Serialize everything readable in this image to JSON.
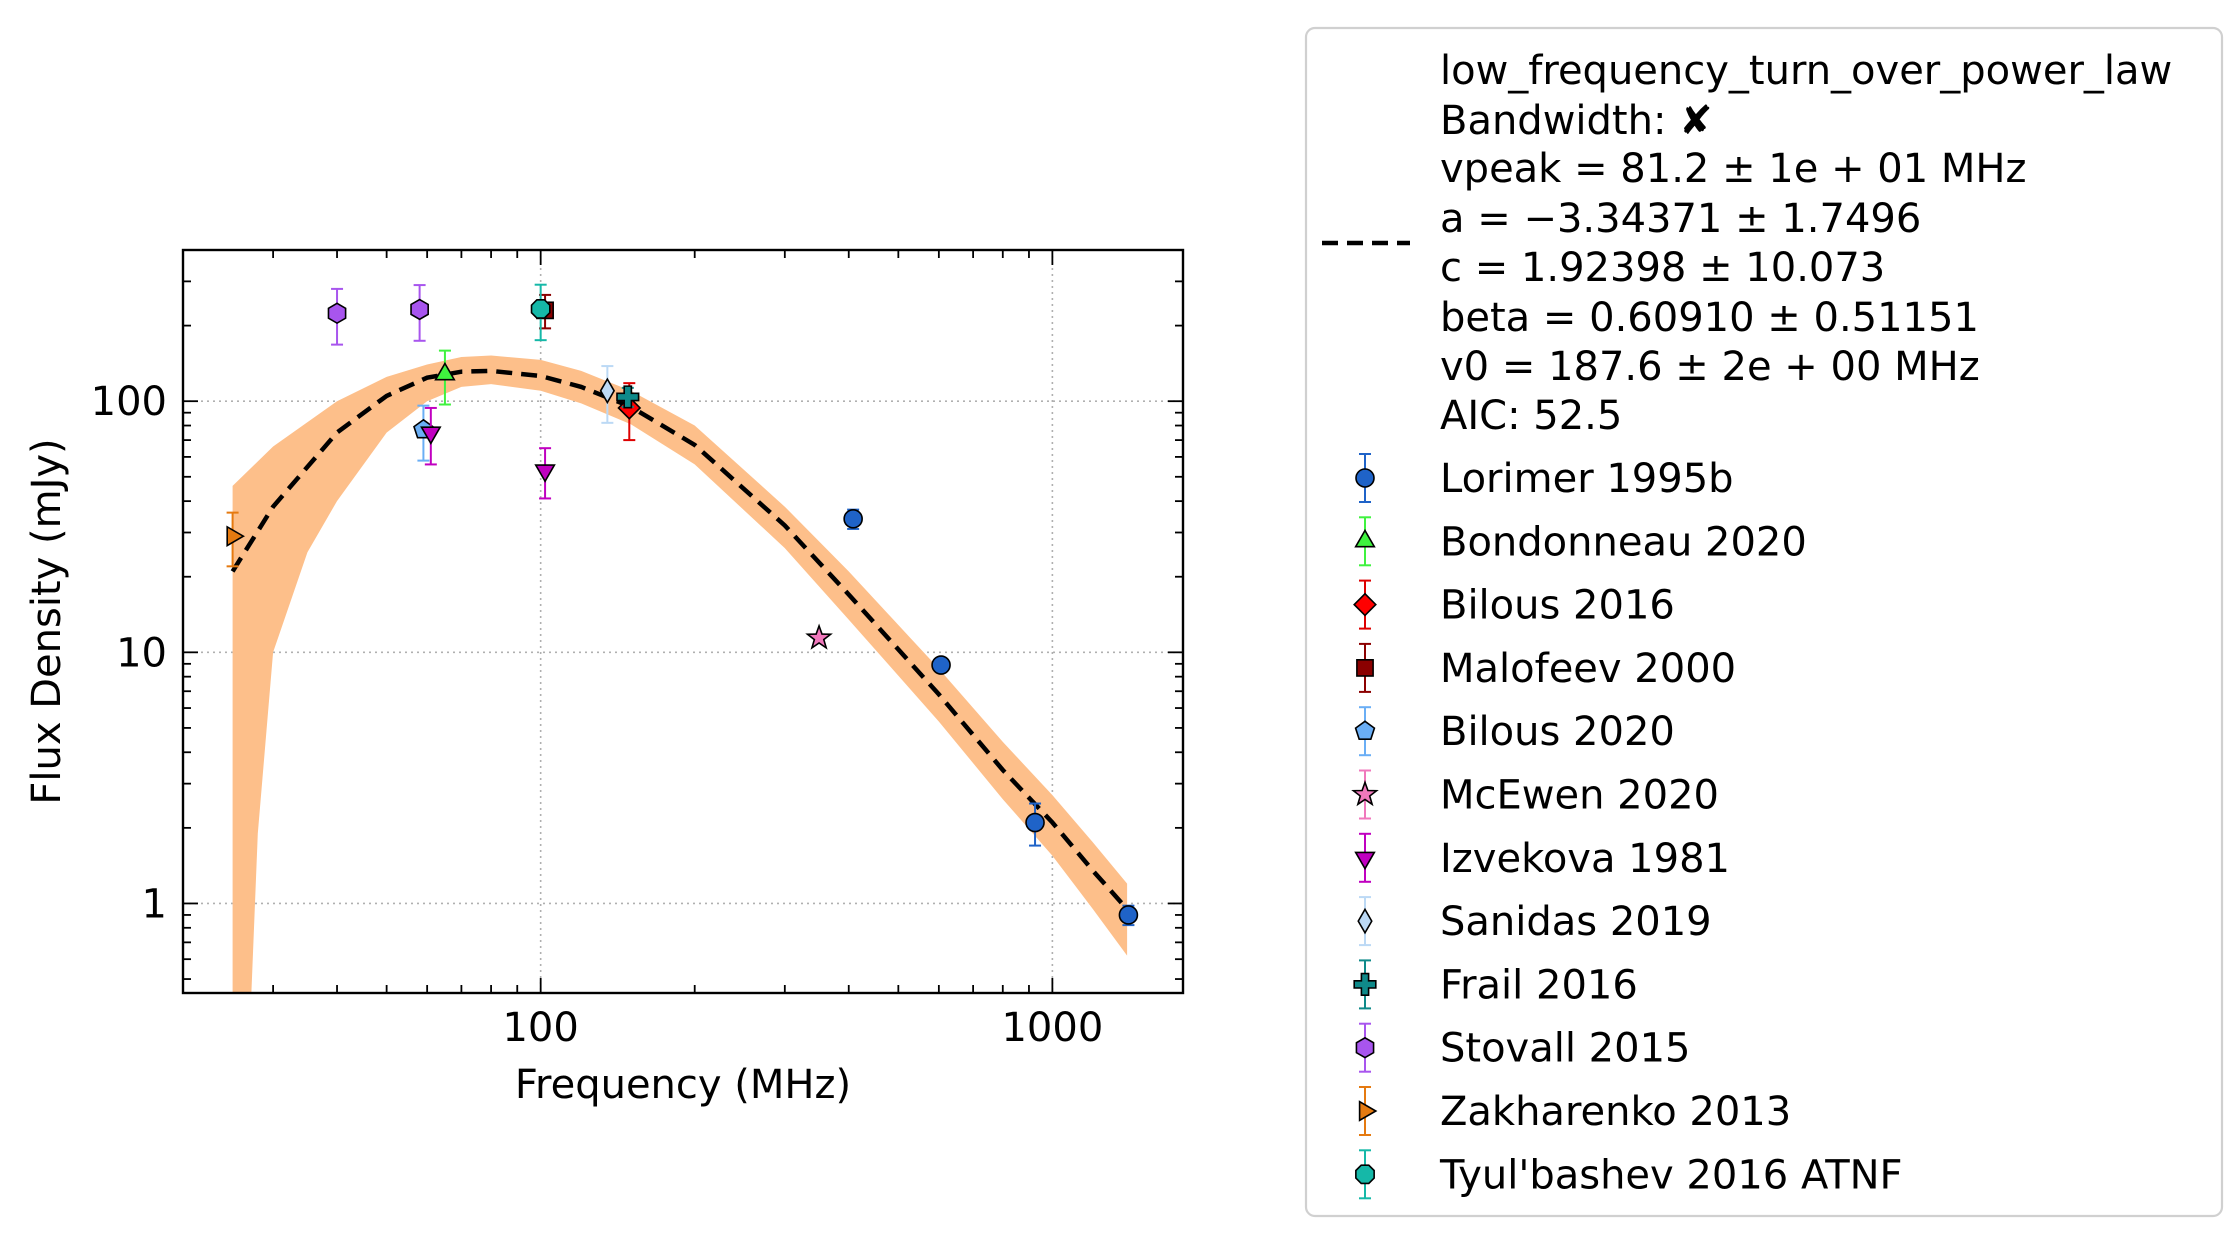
{
  "chart_data": {
    "type": "scatter",
    "xlabel": "Frequency (MHz)",
    "ylabel": "Flux Density (mJy)",
    "x_scale": "log",
    "y_scale": "log",
    "xlim": [
      20,
      1800
    ],
    "ylim": [
      0.44,
      400
    ],
    "x_ticks": [
      {
        "value": 100,
        "label": "100"
      },
      {
        "value": 1000,
        "label": "1000"
      }
    ],
    "y_ticks": [
      {
        "value": 1,
        "label": "1"
      },
      {
        "value": 10,
        "label": "10"
      },
      {
        "value": 100,
        "label": "100"
      }
    ],
    "grid": true,
    "legend_position": "outside-right",
    "model": {
      "name": "low_frequency_turn_over_power_law",
      "info_lines": [
        "low_frequency_turn_over_power_law",
        "Bandwidth: ✘",
        "vpeak = 81.2 ± 1e + 01 MHz",
        "a = −3.34371 ± 1.7496",
        "c = 1.92398 ± 10.073",
        "beta = 0.60910 ± 0.51151",
        "v0 = 187.6 ± 2e + 00 MHz",
        "AIC: 52.5"
      ],
      "color": "#000000",
      "band_color": "#fdbf8a",
      "curve": [
        [
          25,
          21
        ],
        [
          30,
          38
        ],
        [
          40,
          75
        ],
        [
          50,
          105
        ],
        [
          60,
          124
        ],
        [
          70,
          131
        ],
        [
          80,
          132
        ],
        [
          100,
          126
        ],
        [
          120,
          114
        ],
        [
          150,
          95
        ],
        [
          200,
          67
        ],
        [
          300,
          32
        ],
        [
          400,
          17
        ],
        [
          600,
          6.8
        ],
        [
          800,
          3.4
        ],
        [
          1000,
          2.1
        ],
        [
          1200,
          1.35
        ],
        [
          1400,
          0.95
        ]
      ],
      "band_upper": [
        [
          25,
          46
        ],
        [
          30,
          66
        ],
        [
          40,
          100
        ],
        [
          50,
          125
        ],
        [
          60,
          140
        ],
        [
          70,
          150
        ],
        [
          80,
          152
        ],
        [
          100,
          146
        ],
        [
          120,
          132
        ],
        [
          150,
          110
        ],
        [
          200,
          80
        ],
        [
          300,
          38
        ],
        [
          400,
          21
        ],
        [
          600,
          8.6
        ],
        [
          800,
          4.4
        ],
        [
          1000,
          2.7
        ],
        [
          1200,
          1.75
        ],
        [
          1400,
          1.2
        ]
      ],
      "band_lower": [
        [
          25,
          0.3
        ],
        [
          27,
          0.3
        ],
        [
          28,
          1.9
        ],
        [
          30,
          10
        ],
        [
          35,
          25
        ],
        [
          40,
          40
        ],
        [
          50,
          75
        ],
        [
          60,
          100
        ],
        [
          70,
          114
        ],
        [
          80,
          117
        ],
        [
          100,
          110
        ],
        [
          120,
          98
        ],
        [
          150,
          81
        ],
        [
          200,
          56
        ],
        [
          300,
          26
        ],
        [
          400,
          13.5
        ],
        [
          600,
          5.3
        ],
        [
          800,
          2.6
        ],
        [
          1000,
          1.55
        ],
        [
          1200,
          0.95
        ],
        [
          1400,
          0.62
        ]
      ]
    },
    "series": [
      {
        "name": "Lorimer 1995b",
        "marker": "circle",
        "color": "#1f63c8",
        "err_color": "#1f63c8",
        "points": [
          {
            "x": 408,
            "y": 34,
            "lo": 31,
            "hi": 37
          },
          {
            "x": 606,
            "y": 8.9,
            "lo": 8.4,
            "hi": 9.4
          },
          {
            "x": 925,
            "y": 2.1,
            "lo": 1.7,
            "hi": 2.5
          },
          {
            "x": 1408,
            "y": 0.9,
            "lo": 0.82,
            "hi": 0.98
          }
        ]
      },
      {
        "name": "Bondonneau 2020",
        "marker": "triangle-up",
        "color": "#3ff23f",
        "err_color": "#3ff23f",
        "points": [
          {
            "x": 65,
            "y": 128,
            "lo": 97,
            "hi": 159
          }
        ]
      },
      {
        "name": "Bilous 2016",
        "marker": "diamond",
        "color": "#ff0000",
        "err_color": "#dd0000",
        "points": [
          {
            "x": 149,
            "y": 94,
            "lo": 70,
            "hi": 118
          }
        ]
      },
      {
        "name": "Malofeev 2000",
        "marker": "square",
        "color": "#8b0000",
        "err_color": "#8b0000",
        "points": [
          {
            "x": 102,
            "y": 230,
            "lo": 195,
            "hi": 265
          }
        ]
      },
      {
        "name": "Bilous 2020",
        "marker": "pentagon",
        "color": "#6aaef5",
        "err_color": "#6aaef5",
        "points": [
          {
            "x": 59,
            "y": 77,
            "lo": 58,
            "hi": 96
          }
        ]
      },
      {
        "name": "McEwen 2020",
        "marker": "star",
        "color": "#f078bc",
        "err_color": "#f078bc",
        "points": [
          {
            "x": 350,
            "y": 11.4,
            "lo": 11.0,
            "hi": 11.8
          }
        ]
      },
      {
        "name": "Izvekova 1981",
        "marker": "triangle-down",
        "color": "#c000c0",
        "err_color": "#c000c0",
        "points": [
          {
            "x": 61,
            "y": 75,
            "lo": 56,
            "hi": 94
          },
          {
            "x": 102,
            "y": 53,
            "lo": 41,
            "hi": 65
          }
        ]
      },
      {
        "name": "Sanidas 2019",
        "marker": "thin-diamond",
        "color": "#bcd9f5",
        "err_color": "#bcd9f5",
        "points": [
          {
            "x": 135,
            "y": 110,
            "lo": 82,
            "hi": 138
          }
        ]
      },
      {
        "name": "Frail 2016",
        "marker": "plus",
        "color": "#0f8a8a",
        "err_color": "#0f8a8a",
        "points": [
          {
            "x": 148,
            "y": 104,
            "lo": 95,
            "hi": 113
          }
        ]
      },
      {
        "name": "Stovall 2015",
        "marker": "hexagon",
        "color": "#a855ee",
        "err_color": "#a855ee",
        "points": [
          {
            "x": 40,
            "y": 224,
            "lo": 168,
            "hi": 280
          },
          {
            "x": 58,
            "y": 232,
            "lo": 174,
            "hi": 290
          }
        ]
      },
      {
        "name": "Zakharenko 2013",
        "marker": "triangle-right",
        "color": "#e57a10",
        "err_color": "#e57a10",
        "points": [
          {
            "x": 25,
            "y": 29,
            "lo": 22,
            "hi": 36
          }
        ]
      },
      {
        "name": "Tyul'bashev 2016 ATNF",
        "marker": "octagon",
        "color": "#15b8a8",
        "err_color": "#15b8a8",
        "points": [
          {
            "x": 100,
            "y": 233,
            "lo": 175,
            "hi": 291
          }
        ]
      }
    ]
  }
}
